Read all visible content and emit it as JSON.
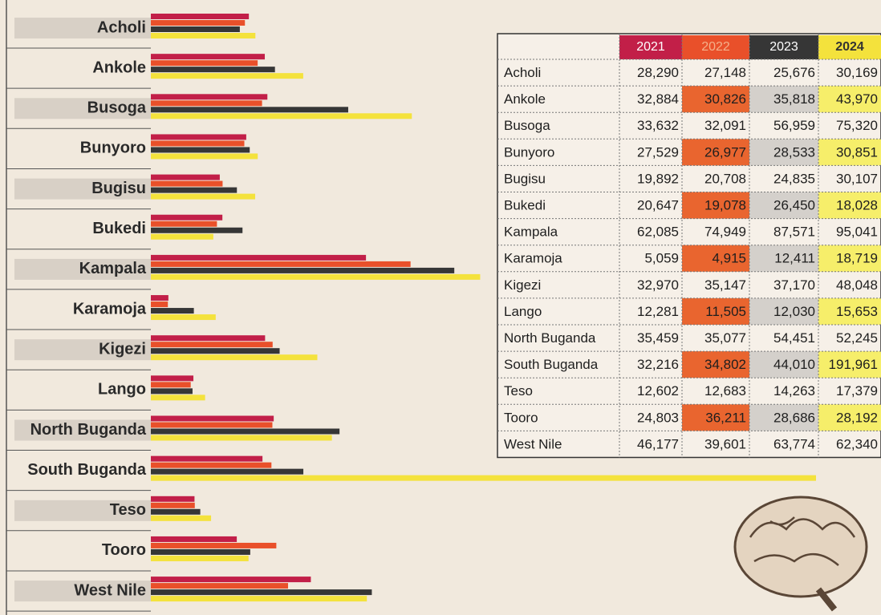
{
  "chart_data": {
    "type": "bar",
    "orientation": "horizontal",
    "categories": [
      "Acholi",
      "Ankole",
      "Busoga",
      "Bunyoro",
      "Bugisu",
      "Bukedi",
      "Kampala",
      "Karamoja",
      "Kigezi",
      "Lango",
      "North Buganda",
      "South Buganda",
      "Teso",
      "Tooro",
      "West Nile"
    ],
    "series": [
      {
        "name": "2021",
        "color": "#c21f48",
        "values": [
          28290,
          32884,
          33632,
          27529,
          19892,
          20647,
          62085,
          5059,
          32970,
          12281,
          35459,
          32216,
          12602,
          24803,
          46177
        ],
        "value_labels": [
          "28,290",
          "32,884",
          "33,632",
          "27,529",
          "19,892",
          "20,647",
          "62,085",
          "5,059",
          "32,970",
          "12,281",
          "35,459",
          "32,216",
          "12,602",
          "24,803",
          "46,177"
        ]
      },
      {
        "name": "2022",
        "color": "#e9502a",
        "values": [
          27148,
          30826,
          32091,
          26977,
          20708,
          19078,
          74949,
          4915,
          35147,
          11505,
          35077,
          34802,
          12683,
          36211,
          39601
        ],
        "value_labels": [
          "27,148",
          "30,826",
          "32,091",
          "26,977",
          "20,708",
          "19,078",
          "74,949",
          "4,915",
          "35,147",
          "11,505",
          "35,077",
          "34,802",
          "12,683",
          "36,211",
          "39,601"
        ]
      },
      {
        "name": "2023",
        "color": "#363636",
        "values": [
          25676,
          35818,
          56959,
          28533,
          24835,
          26450,
          87571,
          12411,
          37170,
          12030,
          54451,
          44010,
          14263,
          28686,
          63774
        ],
        "value_labels": [
          "25,676",
          "35,818",
          "56,959",
          "28,533",
          "24,835",
          "26,450",
          "87,571",
          "12,411",
          "37,170",
          "12,030",
          "54,451",
          "44,010",
          "14,263",
          "28,686",
          "63,774"
        ]
      },
      {
        "name": "2024",
        "color": "#f4e23c",
        "values": [
          30169,
          43970,
          75320,
          30851,
          30107,
          18028,
          95041,
          18719,
          48048,
          15653,
          52245,
          191961,
          17379,
          28192,
          62340
        ],
        "value_labels": [
          "30,169",
          "43,970",
          "75,320",
          "30,851",
          "30,107",
          "18,028",
          "95,041",
          "18,719",
          "48,048",
          "15,653",
          "52,245",
          "191,961",
          "17,379",
          "28,192",
          "62,340"
        ]
      }
    ]
  }
}
